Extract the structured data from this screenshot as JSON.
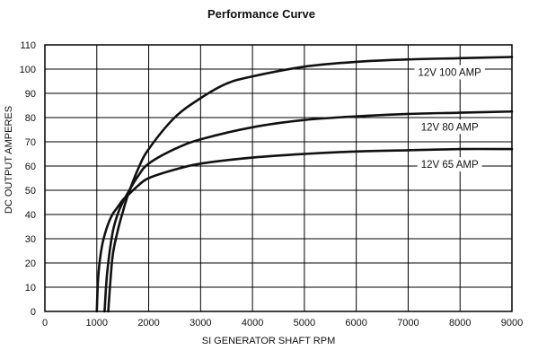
{
  "chart_data": {
    "type": "line",
    "title": "Performance Curve",
    "xlabel": "SI GENERATOR SHAFT RPM",
    "ylabel": "DC OUTPUT AMPERES",
    "xlim": [
      0,
      9000
    ],
    "ylim": [
      0,
      110
    ],
    "xticks": [
      0,
      1000,
      2000,
      3000,
      4000,
      5000,
      6000,
      7000,
      8000,
      9000
    ],
    "yticks": [
      0,
      10,
      20,
      30,
      40,
      50,
      60,
      70,
      80,
      90,
      100,
      110
    ],
    "grid": true,
    "series": [
      {
        "name": "12V 100 AMP",
        "x": [
          1220,
          1300,
          1400,
          1500,
          1600,
          1800,
          2000,
          2500,
          3000,
          3500,
          4000,
          5000,
          6000,
          7000,
          8000,
          9000
        ],
        "y": [
          0,
          22,
          33,
          41,
          48,
          59,
          67,
          80,
          88,
          94,
          97,
          101,
          103,
          104,
          104.5,
          105
        ]
      },
      {
        "name": "12V 80 AMP",
        "x": [
          1150,
          1200,
          1300,
          1400,
          1500,
          1600,
          1800,
          2000,
          2500,
          3000,
          4000,
          5000,
          6000,
          7000,
          8000,
          9000
        ],
        "y": [
          0,
          16,
          32,
          40,
          45,
          49,
          56,
          61,
          67,
          71,
          76,
          79,
          80.5,
          81.5,
          82,
          82.5
        ]
      },
      {
        "name": "12V 65 AMP",
        "x": [
          1000,
          1030,
          1100,
          1200,
          1300,
          1400,
          1500,
          1600,
          1800,
          2000,
          2500,
          3000,
          4000,
          5000,
          6000,
          7000,
          8000,
          9000
        ],
        "y": [
          0,
          15,
          27,
          35,
          40,
          43,
          46,
          48,
          52,
          55,
          58.5,
          61,
          63.5,
          65,
          66,
          66.5,
          67,
          67
        ]
      }
    ],
    "annotations": [
      "12V 100 AMP",
      "12V 80 AMP",
      "12V 65 AMP"
    ]
  }
}
